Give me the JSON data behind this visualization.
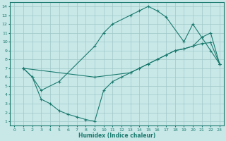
{
  "xlabel": "Humidex (Indice chaleur)",
  "bg_color": "#c8e8e8",
  "line_color": "#1a7a6e",
  "grid_color": "#a0c8c8",
  "xlim": [
    -0.5,
    23.5
  ],
  "ylim": [
    0.5,
    14.5
  ],
  "xticks": [
    0,
    1,
    2,
    3,
    4,
    5,
    6,
    7,
    8,
    9,
    10,
    11,
    12,
    13,
    14,
    15,
    16,
    17,
    18,
    19,
    20,
    21,
    22,
    23
  ],
  "yticks": [
    1,
    2,
    3,
    4,
    5,
    6,
    7,
    8,
    9,
    10,
    11,
    12,
    13,
    14
  ],
  "line1": {
    "x": [
      1,
      2,
      3,
      5,
      9,
      10,
      11,
      13,
      14,
      15,
      16,
      17,
      19,
      20,
      21,
      22,
      23
    ],
    "y": [
      7,
      6,
      4.5,
      5.5,
      9.5,
      11,
      12,
      13,
      13.5,
      14,
      13.5,
      12.8,
      10,
      12,
      10.5,
      9,
      7.5
    ]
  },
  "line2": {
    "x": [
      1,
      2,
      3,
      4,
      5,
      6,
      7,
      8,
      9,
      10,
      11,
      12,
      13,
      14,
      15,
      16,
      17,
      18,
      19,
      20,
      21,
      22,
      23
    ],
    "y": [
      7,
      6,
      3.5,
      3,
      2.2,
      1.8,
      1.5,
      1.2,
      1.0,
      4.5,
      5.5,
      6,
      6.5,
      7,
      7.5,
      8,
      8.5,
      9,
      9.2,
      9.5,
      9.8,
      9.9,
      7.5
    ]
  },
  "line3": {
    "x": [
      1,
      9,
      13,
      14,
      15,
      16,
      17,
      18,
      19,
      20,
      21,
      22,
      23
    ],
    "y": [
      7,
      6,
      6.5,
      7,
      7.5,
      8,
      8.5,
      9,
      9.2,
      9.5,
      10.5,
      11,
      7.5
    ]
  }
}
